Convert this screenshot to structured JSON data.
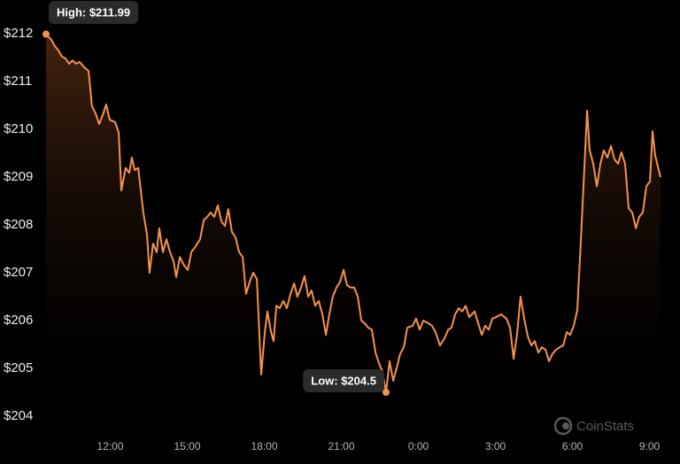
{
  "chart_data": {
    "type": "line",
    "annotations": [
      "High: $211.99",
      "Low: $204.5"
    ],
    "watermark": "CoinStats",
    "color": "#f6924c",
    "grid": false,
    "xlim": [
      9.5,
      33.43
    ],
    "xticks": [
      {
        "value": 12,
        "label": "12:00"
      },
      {
        "value": 15,
        "label": "15:00"
      },
      {
        "value": 18,
        "label": "18:00"
      },
      {
        "value": 21,
        "label": "21:00"
      },
      {
        "value": 24,
        "label": "0:00"
      },
      {
        "value": 27,
        "label": "3:00"
      },
      {
        "value": 30,
        "label": "6:00"
      },
      {
        "value": 33,
        "label": "9:00"
      }
    ],
    "ylim": [
      204,
      212
    ],
    "yticks": [
      {
        "value": 204,
        "label": "$204"
      },
      {
        "value": 205,
        "label": "$205"
      },
      {
        "value": 206,
        "label": "$206"
      },
      {
        "value": 207,
        "label": "$207"
      },
      {
        "value": 208,
        "label": "$208"
      },
      {
        "value": 209,
        "label": "$209"
      },
      {
        "value": 210,
        "label": "$210"
      },
      {
        "value": 211,
        "label": "$211"
      },
      {
        "value": 212,
        "label": "$212"
      }
    ],
    "x": [
      9.5,
      9.71,
      9.84,
      9.98,
      10.12,
      10.26,
      10.4,
      10.53,
      10.67,
      10.81,
      10.98,
      11.16,
      11.29,
      11.43,
      11.57,
      11.71,
      11.84,
      11.98,
      12.19,
      12.33,
      12.43,
      12.6,
      12.74,
      12.84,
      12.95,
      13.09,
      13.29,
      13.43,
      13.53,
      13.67,
      13.81,
      13.91,
      14.05,
      14.19,
      14.33,
      14.47,
      14.57,
      14.71,
      14.88,
      15.02,
      15.16,
      15.33,
      15.5,
      15.64,
      15.78,
      15.91,
      16.05,
      16.19,
      16.33,
      16.47,
      16.6,
      16.74,
      16.88,
      17.02,
      17.16,
      17.29,
      17.43,
      17.57,
      17.71,
      17.88,
      18.02,
      18.12,
      18.26,
      18.36,
      18.47,
      18.6,
      18.74,
      18.88,
      19.02,
      19.16,
      19.29,
      19.43,
      19.57,
      19.71,
      19.84,
      19.98,
      20.12,
      20.26,
      20.4,
      20.53,
      20.67,
      20.81,
      20.95,
      21.09,
      21.22,
      21.36,
      21.5,
      21.64,
      21.78,
      21.91,
      22.05,
      22.19,
      22.33,
      22.47,
      22.6,
      22.74,
      22.88,
      23.02,
      23.16,
      23.29,
      23.43,
      23.57,
      23.78,
      23.91,
      24.05,
      24.19,
      24.4,
      24.53,
      24.67,
      24.84,
      25.02,
      25.16,
      25.29,
      25.43,
      25.57,
      25.71,
      25.84,
      25.98,
      26.19,
      26.33,
      26.47,
      26.6,
      26.74,
      26.88,
      27.02,
      27.22,
      27.43,
      27.57,
      27.71,
      27.84,
      27.98,
      28.12,
      28.26,
      28.4,
      28.53,
      28.67,
      28.81,
      28.95,
      29.09,
      29.22,
      29.36,
      29.5,
      29.64,
      29.78,
      29.91,
      30.05,
      30.19,
      30.33,
      30.47,
      30.57,
      30.67,
      30.81,
      30.95,
      31.09,
      31.22,
      31.36,
      31.5,
      31.64,
      31.78,
      31.91,
      32.05,
      32.19,
      32.33,
      32.47,
      32.6,
      32.74,
      32.88,
      33.02,
      33.12,
      33.22,
      33.43
    ],
    "values": [
      211.99,
      211.87,
      211.74,
      211.65,
      211.52,
      211.48,
      211.37,
      211.44,
      211.37,
      211.41,
      211.3,
      211.22,
      210.48,
      210.33,
      210.11,
      210.3,
      210.52,
      210.2,
      210.15,
      209.93,
      208.72,
      209.19,
      209.09,
      209.41,
      209.15,
      209.19,
      208.26,
      207.8,
      207.0,
      207.61,
      207.43,
      207.93,
      207.43,
      207.7,
      207.43,
      207.24,
      206.91,
      207.33,
      207.15,
      207.06,
      207.43,
      207.56,
      207.7,
      208.1,
      208.17,
      208.26,
      208.17,
      208.41,
      208.07,
      207.98,
      208.33,
      207.85,
      207.74,
      207.43,
      207.33,
      206.56,
      206.81,
      207.0,
      206.87,
      204.87,
      205.76,
      206.19,
      205.76,
      205.57,
      206.31,
      206.26,
      206.41,
      206.26,
      206.56,
      206.78,
      206.5,
      206.69,
      206.93,
      206.5,
      206.63,
      206.31,
      206.41,
      206.13,
      205.7,
      206.13,
      206.5,
      206.69,
      206.81,
      207.06,
      206.74,
      206.69,
      206.69,
      206.5,
      206.0,
      205.94,
      205.85,
      205.81,
      205.33,
      205.11,
      204.93,
      204.5,
      205.15,
      204.74,
      205.02,
      205.3,
      205.44,
      205.85,
      205.89,
      206.04,
      205.81,
      206.0,
      205.94,
      205.89,
      205.76,
      205.48,
      205.63,
      205.81,
      205.85,
      206.13,
      206.26,
      206.19,
      206.31,
      206.07,
      206.19,
      205.94,
      205.7,
      205.89,
      205.81,
      206.04,
      206.07,
      206.13,
      206.04,
      205.85,
      205.2,
      205.7,
      206.5,
      206.04,
      205.67,
      205.48,
      205.57,
      205.33,
      205.44,
      205.39,
      205.15,
      205.3,
      205.39,
      205.44,
      205.48,
      205.76,
      205.7,
      205.89,
      206.22,
      207.7,
      209.28,
      210.39,
      209.56,
      209.28,
      208.81,
      209.28,
      209.56,
      209.41,
      209.65,
      209.37,
      209.28,
      209.52,
      209.28,
      208.35,
      208.26,
      207.93,
      208.17,
      208.26,
      208.81,
      208.91,
      209.96,
      209.46,
      209.0
    ]
  }
}
